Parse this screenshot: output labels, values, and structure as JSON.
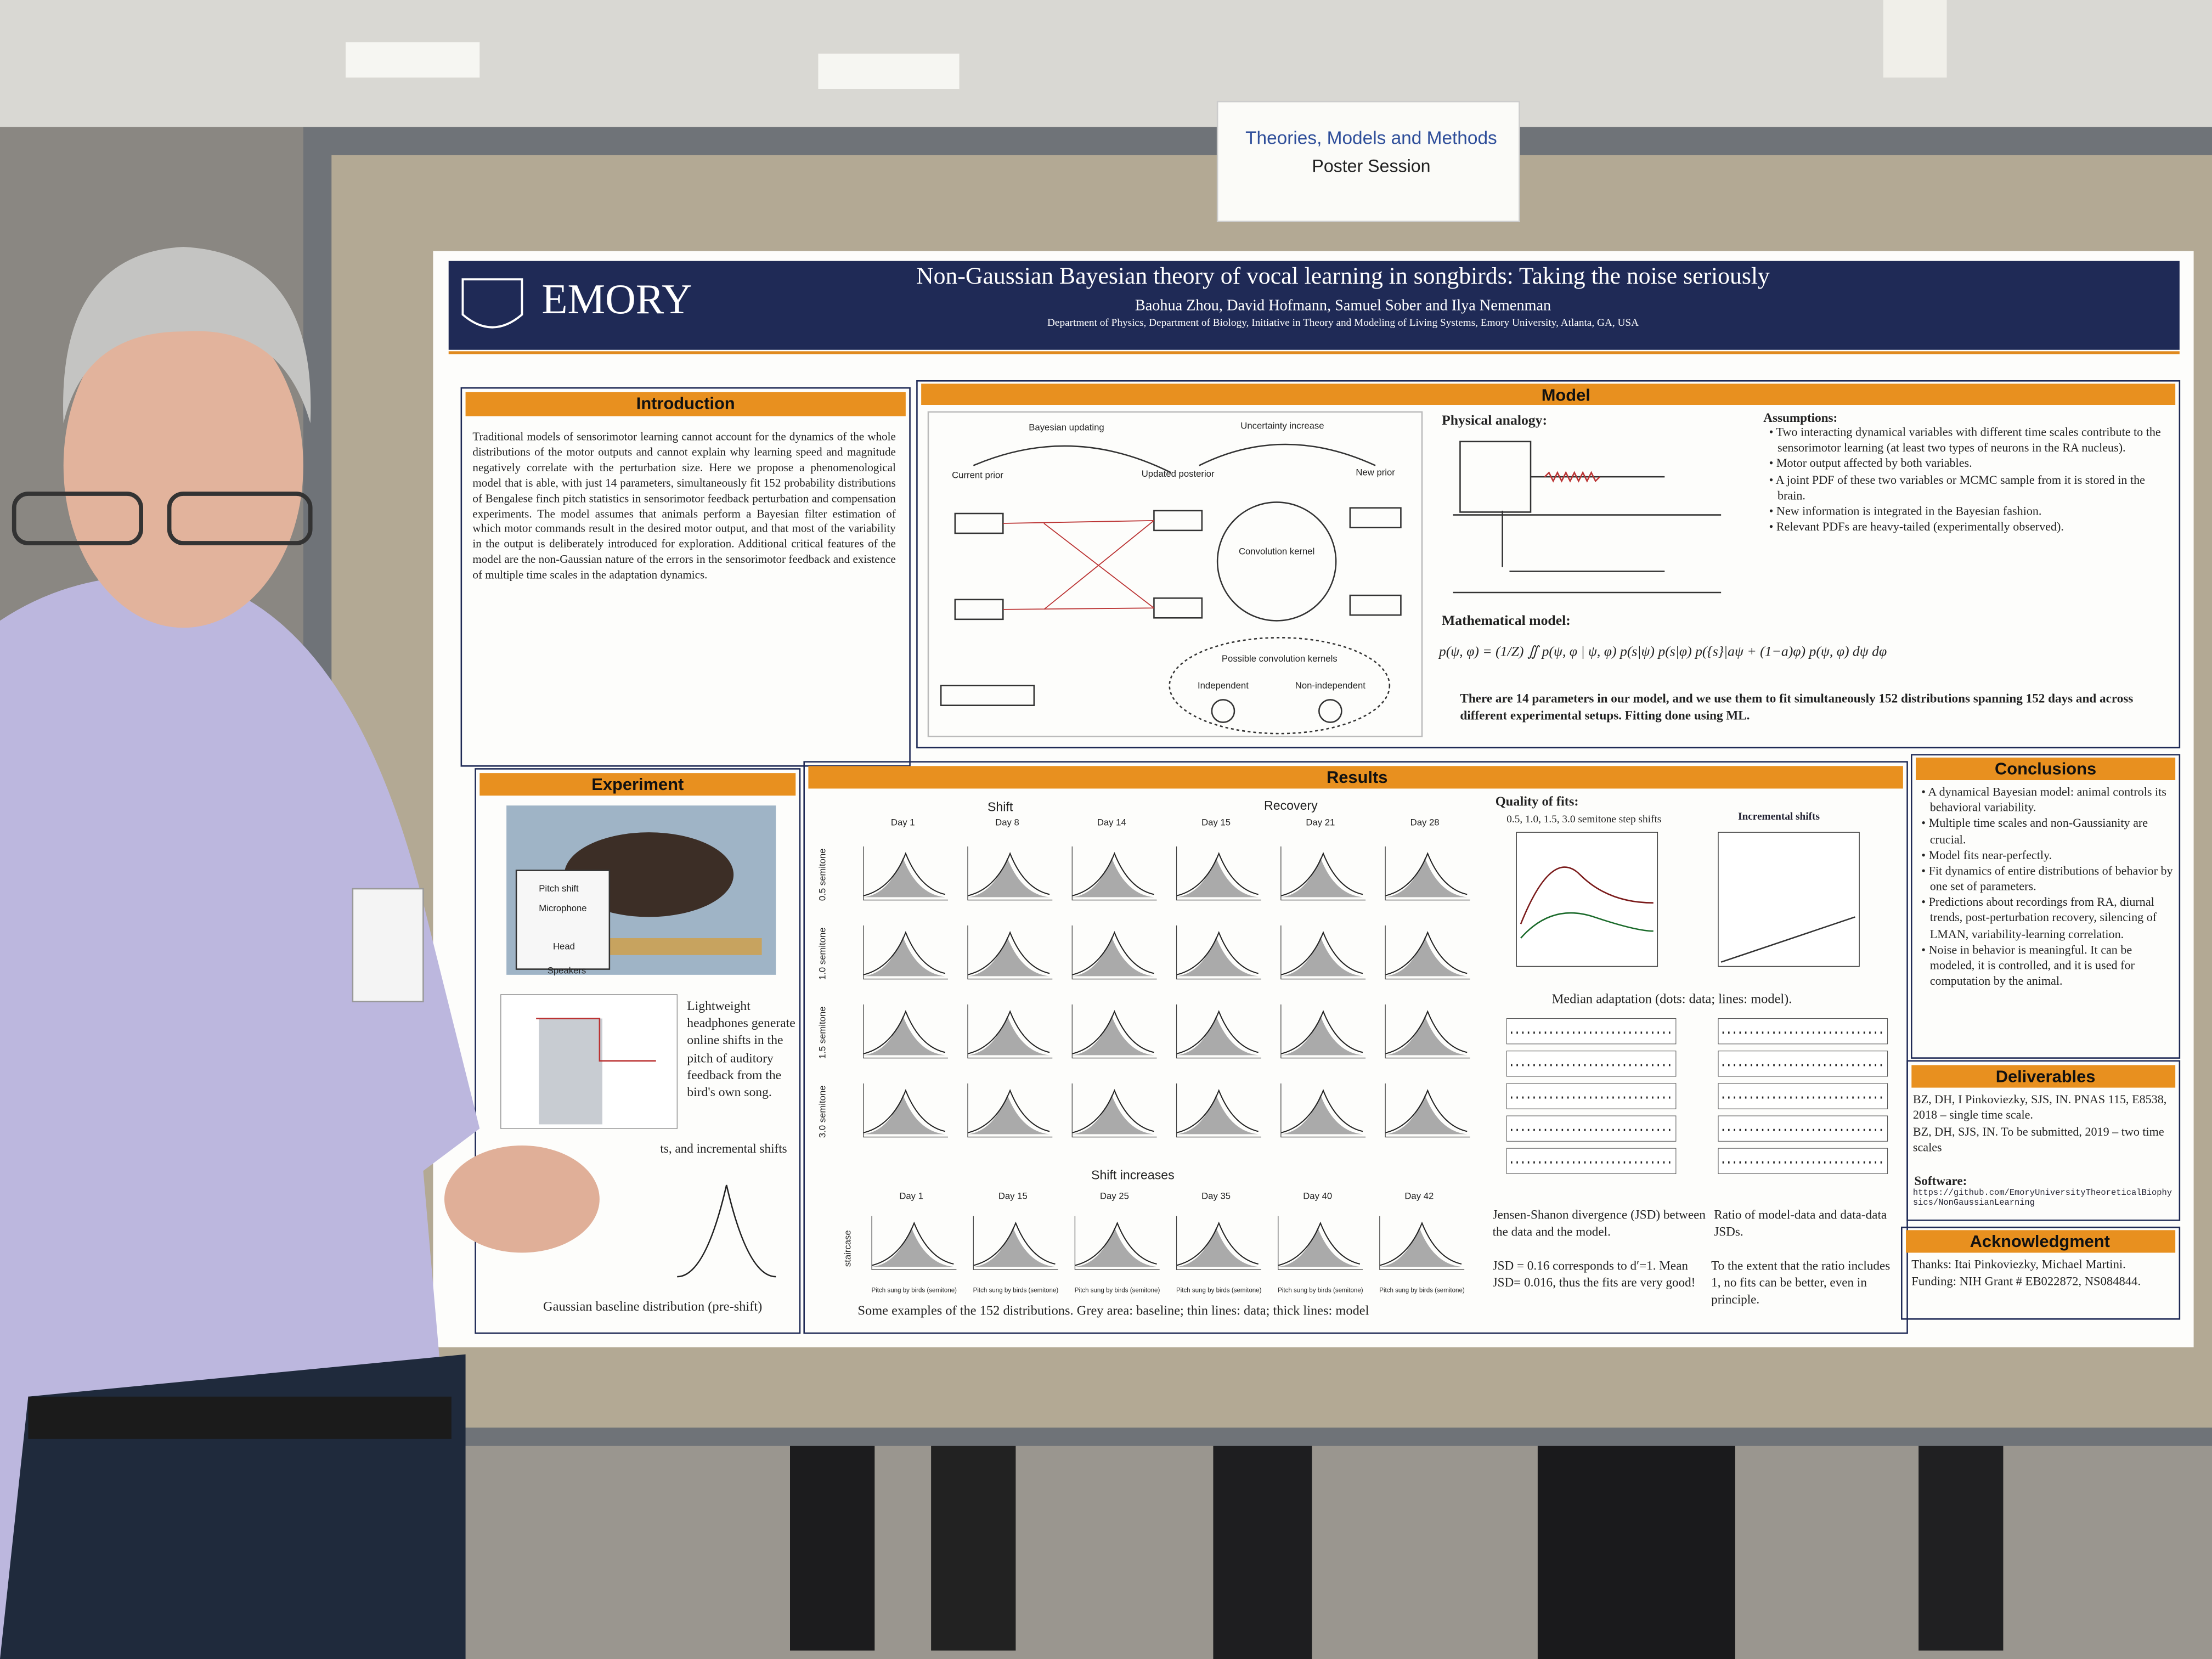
{
  "sign": {
    "title": "Theories, Models and Methods",
    "subtitle": "Poster Session"
  },
  "poster": {
    "header": {
      "logo": "EMORY",
      "title": "Non-Gaussian Bayesian theory of vocal learning in songbirds: Taking the noise seriously",
      "authors": "Baohua Zhou, David Hofmann, Samuel Sober and Ilya Nemenman",
      "affiliation": "Department of Physics, Department of Biology, Initiative in Theory and Modeling of Living Systems, Emory University, Atlanta, GA, USA"
    },
    "introduction": {
      "heading": "Introduction",
      "text": "Traditional models of sensorimotor learning cannot account for the dynamics of the whole distributions of the motor outputs and cannot explain why learning speed and magnitude negatively correlate with the perturbation size. Here we propose a phenomenological model that is able, with just 14 parameters, simultaneously fit 152 probability distributions of Bengalese finch pitch statistics in sensorimotor feedback perturbation and compensation experiments. The model assumes that animals perform a Bayesian filter estimation of which motor commands result in the desired motor output, and that most of the variability in the output is deliberately introduced for exploration. Additional critical features of the model are the non-Gaussian nature of the errors in the sensorimotor feedback and existence of multiple time scales in the adaptation dynamics."
    },
    "model": {
      "heading": "Model",
      "bayesian_updating": "Bayesian updating",
      "uncertainty_increase": "Uncertainty increase",
      "current_prior": "Current prior",
      "updated_posterior": "Updated posterior",
      "new_prior": "New prior",
      "convolution_kernel": "Convolution kernel",
      "possible_kernels": "Possible convolution kernels",
      "independent": "Independent",
      "non_independent": "Non-independent",
      "physical_analogy": "Physical analogy:",
      "mathematical_model": "Mathematical model:",
      "assumptions_heading": "Assumptions:",
      "assumptions": [
        "Two interacting dynamical variables with different time scales contribute to the sensorimotor learning (at least two types of neurons in the RA nucleus).",
        "Motor output affected by both variables.",
        "A joint PDF of these two variables or MCMC sample from it is stored in the brain.",
        "New information is integrated in the Bayesian fashion.",
        "Relevant PDFs are heavy-tailed (experimentally observed)."
      ],
      "note": "There are 14 parameters in our model, and we use them to fit simultaneously 152 distributions spanning 152 days and across different experimental setups. Fitting done using ML."
    },
    "experiment": {
      "heading": "Experiment",
      "pitch_shift": "Pitch shift",
      "microphone": "Microphone",
      "head": "Head",
      "speakers": "Speakers",
      "caption": "Lightweight headphones generate online shifts in the pitch of auditory feedback from the bird's own song.",
      "partial": "ts, and incremental shifts",
      "footer": "Gaussian baseline distribution (pre-shift)"
    },
    "results": {
      "heading": "Results",
      "shift": "Shift",
      "recovery": "Recovery",
      "days": [
        "Day 1",
        "Day 8",
        "Day 14",
        "Day 15",
        "Day 21",
        "Day 28"
      ],
      "rows": [
        "0.5 semitone",
        "1.0 semitone",
        "1.5 semitone",
        "3.0 semitone"
      ],
      "shift_increases": "Shift increases",
      "days2": [
        "Day 1",
        "Day 15",
        "Day 25",
        "Day 35",
        "Day 40",
        "Day 42"
      ],
      "row2": "staircase",
      "xlabel": "Pitch sung by birds (semitone)",
      "caption": "Some examples of the 152 distributions. Grey area: baseline; thin lines: data; thick lines: model",
      "quality": "Quality of fits:",
      "steps": "0.5, 1.0, 1.5, 3.0 semitone step shifts",
      "incremental": "Incremental shifts",
      "median": "Median adaptation (dots: data; lines: model).",
      "jsd": "Jensen-Shanon divergence (JSD) between the data and the model.",
      "jsd2": "JSD = 0.16 corresponds to d′=1. Mean JSD= 0.016, thus the fits are very good!",
      "ratio": "Ratio of model-data and data-data JSDs.",
      "ratio2": "To the extent that the ratio includes 1, no fits can be better, even in principle."
    },
    "conclusions": {
      "heading": "Conclusions",
      "items": [
        "A dynamical Bayesian model: animal controls its behavioral variability.",
        "Multiple time scales and non-Gaussianity are crucial.",
        "Model fits near-perfectly.",
        "Fit dynamics of entire distributions of behavior by one set of parameters.",
        "Predictions about recordings from RA, diurnal trends, post-perturbation recovery, silencing of LMAN, variability-learning correlation.",
        "Noise in behavior is meaningful. It can be modeled, it is controlled, and it is used for computation by the animal."
      ]
    },
    "deliverables": {
      "heading": "Deliverables",
      "items": [
        "BZ, DH, I Pinkoviezky, SJS, IN. PNAS 115, E8538, 2018 – single time scale.",
        "BZ, DH, SJS, IN. To be submitted, 2019 – two time scales"
      ],
      "software": "Software:",
      "url": "https://github.com/EmoryUniversityTheoreticalBiophysics/NonGaussianLearning"
    },
    "acknowledgment": {
      "heading": "Acknowledgment",
      "text": "Thanks: Itai Pinkoviezky, Michael Martini. Funding: NIH Grant # EB022872, NS084844."
    }
  }
}
